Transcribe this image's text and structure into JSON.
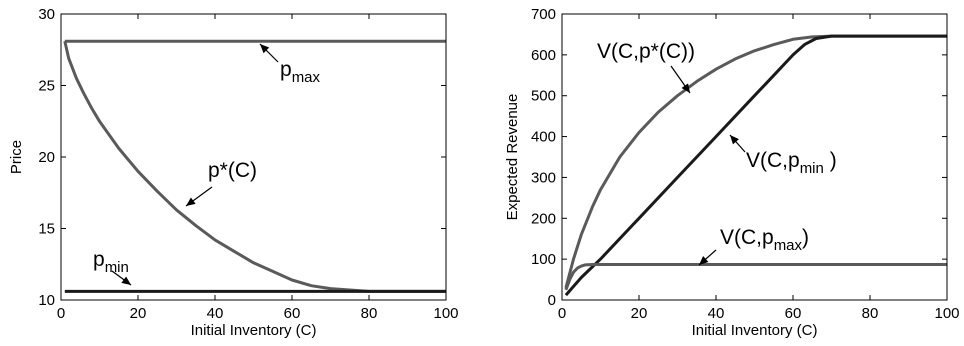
{
  "chart_data": [
    {
      "type": "line",
      "title": "",
      "xlabel": "Initial Inventory (C)",
      "ylabel": "Price",
      "xlim": [
        0,
        100
      ],
      "ylim": [
        10,
        30
      ],
      "xticks": [
        0,
        20,
        40,
        60,
        80,
        100
      ],
      "yticks": [
        10,
        15,
        20,
        25,
        30
      ],
      "grid": false,
      "series": [
        {
          "color": "#5a5a5a",
          "x": [
            1,
            100
          ],
          "y": [
            28.1,
            28.1
          ]
        },
        {
          "color": "#5a5a5a",
          "x": [
            1,
            2,
            4,
            6,
            8,
            10,
            15,
            20,
            25,
            30,
            35,
            40,
            45,
            50,
            55,
            60,
            65,
            70,
            75,
            80,
            85,
            90,
            95,
            100
          ],
          "y": [
            28.1,
            26.9,
            25.5,
            24.4,
            23.4,
            22.5,
            20.6,
            19.0,
            17.6,
            16.3,
            15.2,
            14.2,
            13.4,
            12.6,
            12.0,
            11.4,
            11.0,
            10.8,
            10.7,
            10.6,
            10.6,
            10.6,
            10.6,
            10.6
          ]
        },
        {
          "color": "#1a1a1a",
          "x": [
            1,
            100
          ],
          "y": [
            10.6,
            10.6
          ]
        }
      ],
      "annotations": [
        {
          "main": "p",
          "sub": "max",
          "suffix": ""
        },
        {
          "main": "p*(C)",
          "sub": "",
          "suffix": ""
        },
        {
          "main": "p",
          "sub": "min",
          "suffix": ""
        }
      ]
    },
    {
      "type": "line",
      "title": "",
      "xlabel": "Initial Inventory (C)",
      "ylabel": "Expected Revenue",
      "xlim": [
        0,
        100
      ],
      "ylim": [
        0,
        700
      ],
      "xticks": [
        0,
        20,
        40,
        60,
        80,
        100
      ],
      "yticks": [
        0,
        100,
        200,
        300,
        400,
        500,
        600,
        700
      ],
      "grid": false,
      "series": [
        {
          "color": "#5a5a5a",
          "x": [
            1,
            3,
            5,
            8,
            10,
            15,
            20,
            25,
            30,
            35,
            40,
            45,
            50,
            55,
            60,
            65,
            70,
            75,
            80,
            90,
            100
          ],
          "y": [
            30,
            100,
            160,
            230,
            270,
            350,
            410,
            460,
            500,
            535,
            565,
            590,
            610,
            625,
            638,
            644,
            646,
            646,
            646,
            646,
            646
          ]
        },
        {
          "color": "#1a1a1a",
          "x": [
            1,
            5,
            10,
            20,
            30,
            40,
            50,
            55,
            60,
            63,
            66,
            70,
            75,
            80,
            90,
            100
          ],
          "y": [
            12,
            55,
            100,
            200,
            300,
            400,
            500,
            550,
            600,
            625,
            640,
            646,
            646,
            646,
            646,
            646
          ]
        },
        {
          "color": "#5a5a5a",
          "x": [
            1,
            2,
            3,
            4,
            5,
            6,
            8,
            10,
            20,
            40,
            60,
            80,
            100
          ],
          "y": [
            25,
            50,
            68,
            78,
            83,
            86,
            87,
            87,
            87,
            87,
            87,
            87,
            87
          ]
        }
      ],
      "annotations": [
        {
          "main": "V(C,p*(C))",
          "sub": "",
          "suffix": ""
        },
        {
          "main": "V(C,p",
          "sub": "min",
          "suffix": " )"
        },
        {
          "main": "V(C,p",
          "sub": "max",
          "suffix": ")"
        }
      ]
    }
  ]
}
